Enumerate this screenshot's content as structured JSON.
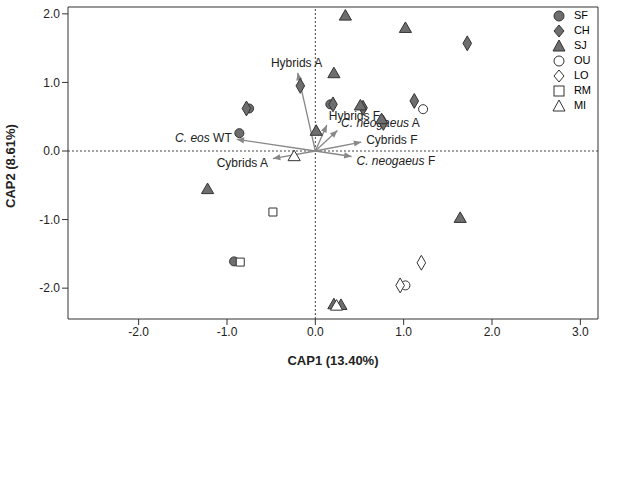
{
  "chart_data": {
    "type": "scatter",
    "x_label": "CAP1 (13.40%)",
    "y_label": "CAP2 (8.61%)",
    "xlim": [
      -2.8,
      3.2
    ],
    "ylim": [
      -2.45,
      2.1
    ],
    "xticks": [
      {
        "value": -2,
        "label": "-2.0"
      },
      {
        "value": -1,
        "label": "-1.0"
      },
      {
        "value": 0,
        "label": "0.0"
      },
      {
        "value": 1,
        "label": "1.0"
      },
      {
        "value": 2,
        "label": "2.0"
      },
      {
        "value": 3,
        "label": "3.0"
      }
    ],
    "yticks": [
      {
        "value": -2,
        "label": "-2.0"
      },
      {
        "value": -1,
        "label": "-1.0"
      },
      {
        "value": 0,
        "label": "0.0"
      },
      {
        "value": 1,
        "label": "1.0"
      },
      {
        "value": 2,
        "label": "2.0"
      }
    ],
    "grid": false,
    "legend": "top-right",
    "series": [
      {
        "name": "SF",
        "marker": "circle",
        "color": "#6e6e6e",
        "x": [
          -0.86,
          -0.75,
          0.17,
          -0.92
        ],
        "y": [
          0.26,
          0.62,
          0.68,
          -1.61
        ]
      },
      {
        "name": "CH",
        "marker": "diamond",
        "color": "#6e6e6e",
        "x": [
          -0.78,
          -0.17,
          0.2,
          0.54,
          0.77,
          1.12,
          1.72
        ],
        "y": [
          0.62,
          0.95,
          0.68,
          0.63,
          0.41,
          0.73,
          1.57
        ]
      },
      {
        "name": "SJ",
        "marker": "triangle",
        "color": "#6e6e6e",
        "x": [
          0.34,
          1.02,
          0.21,
          0.51,
          0.75,
          0.01,
          -1.22,
          1.64,
          0.29,
          0.21
        ],
        "y": [
          1.96,
          1.78,
          1.12,
          0.65,
          0.45,
          0.28,
          -0.57,
          -0.99,
          -2.26,
          -2.25
        ]
      },
      {
        "name": "OU",
        "marker": "circle",
        "color": "#ffffff",
        "x": [
          1.22,
          1.02
        ],
        "y": [
          0.61,
          -1.96
        ]
      },
      {
        "name": "LO",
        "marker": "diamond",
        "color": "#ffffff",
        "x": [
          1.2,
          0.96
        ],
        "y": [
          -1.63,
          -1.96
        ]
      },
      {
        "name": "RM",
        "marker": "square",
        "color": "#ffffff",
        "x": [
          -0.48,
          -0.85
        ],
        "y": [
          -0.89,
          -1.62
        ]
      },
      {
        "name": "MI",
        "marker": "triangle",
        "color": "#ffffff",
        "x": [
          -0.24,
          0.24
        ],
        "y": [
          -0.09,
          -2.27
        ]
      }
    ],
    "vectors": [
      {
        "name": "Hybrids A",
        "x": -0.2,
        "y": 1.14
      },
      {
        "name": "Hybrids F",
        "x": 0.13,
        "y": 0.38
      },
      {
        "name": "C. neogaeus A",
        "x": 0.25,
        "y": 0.3
      },
      {
        "name": "Cybrids F",
        "x": 0.52,
        "y": 0.13
      },
      {
        "name": "C. neogaeus F",
        "x": 0.41,
        "y": -0.08
      },
      {
        "name": "Cybrids A",
        "x": -0.48,
        "y": -0.11
      },
      {
        "name": "C. eos WT",
        "x": -0.89,
        "y": 0.17
      }
    ]
  }
}
